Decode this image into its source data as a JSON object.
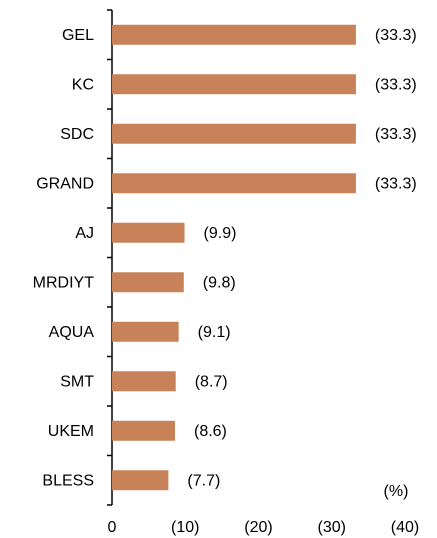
{
  "chart_data": {
    "type": "bar",
    "orientation": "horizontal",
    "categories": [
      "GEL",
      "KC",
      "SDC",
      "GRAND",
      "AJ",
      "MRDIYT",
      "AQUA",
      "SMT",
      "UKEM",
      "BLESS"
    ],
    "values": [
      -33.3,
      -33.3,
      -33.3,
      -33.3,
      -9.9,
      -9.8,
      -9.1,
      -8.7,
      -8.6,
      -7.7
    ],
    "value_labels": [
      "(33.3)",
      "(33.3)",
      "(33.3)",
      "(33.3)",
      "(9.9)",
      "(9.8)",
      "(9.1)",
      "(8.7)",
      "(8.6)",
      "(7.7)"
    ],
    "color": "#c8825a",
    "xlim": [
      0,
      -40
    ],
    "xticks": [
      0,
      {
        "value": -10,
        "label": "(10)"
      },
      {
        "value": -20,
        "label": "(20)"
      },
      {
        "value": -30,
        "label": "(30)"
      },
      {
        "value": -40,
        "label": "(40)"
      }
    ],
    "annotation": "(%)",
    "grid": false
  }
}
